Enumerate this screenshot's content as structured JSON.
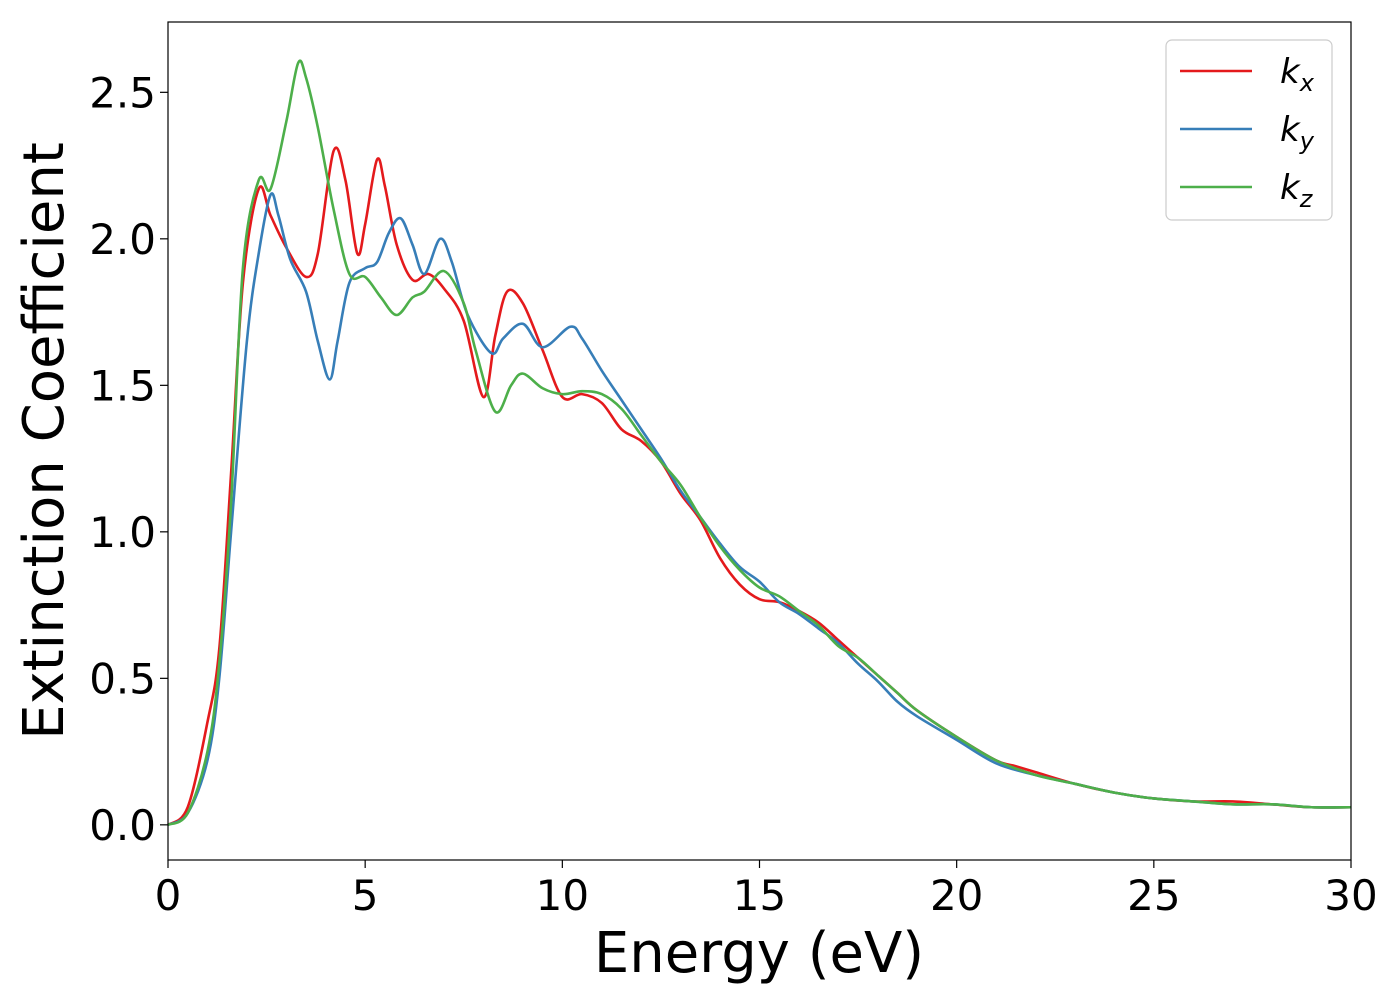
{
  "chart_data": {
    "type": "line",
    "title": "",
    "xlabel": "Energy (eV)",
    "ylabel": "Extinction Coefficient",
    "xlim": [
      0,
      30
    ],
    "ylim": [
      -0.12,
      2.74
    ],
    "xticks": [
      0,
      5,
      10,
      15,
      20,
      25,
      30
    ],
    "xtick_labels": [
      "0",
      "5",
      "10",
      "15",
      "20",
      "25",
      "30"
    ],
    "yticks": [
      0.0,
      0.5,
      1.0,
      1.5,
      2.0,
      2.5
    ],
    "ytick_labels": [
      "0.0",
      "0.5",
      "1.0",
      "1.5",
      "2.0",
      "2.5"
    ],
    "grid": false,
    "legend_position": "top-right",
    "series": [
      {
        "name": "k_x",
        "legend_base": "k",
        "legend_sub": "x",
        "color": "#e41a1c",
        "points": [
          [
            0,
            0
          ],
          [
            0.5,
            0.06
          ],
          [
            1.0,
            0.35
          ],
          [
            1.3,
            0.6
          ],
          [
            1.6,
            1.2
          ],
          [
            1.9,
            1.85
          ],
          [
            2.3,
            2.17
          ],
          [
            2.6,
            2.08
          ],
          [
            3.0,
            1.97
          ],
          [
            3.5,
            1.87
          ],
          [
            3.8,
            1.95
          ],
          [
            4.2,
            2.3
          ],
          [
            4.5,
            2.2
          ],
          [
            4.8,
            1.95
          ],
          [
            5.0,
            2.05
          ],
          [
            5.3,
            2.27
          ],
          [
            5.5,
            2.18
          ],
          [
            5.8,
            1.98
          ],
          [
            6.2,
            1.86
          ],
          [
            6.6,
            1.88
          ],
          [
            7.0,
            1.83
          ],
          [
            7.5,
            1.72
          ],
          [
            8.0,
            1.46
          ],
          [
            8.3,
            1.67
          ],
          [
            8.6,
            1.82
          ],
          [
            9.0,
            1.78
          ],
          [
            9.5,
            1.62
          ],
          [
            10.0,
            1.46
          ],
          [
            10.5,
            1.47
          ],
          [
            11.0,
            1.44
          ],
          [
            11.5,
            1.35
          ],
          [
            12.0,
            1.31
          ],
          [
            12.5,
            1.24
          ],
          [
            13.0,
            1.13
          ],
          [
            13.5,
            1.04
          ],
          [
            14.0,
            0.91
          ],
          [
            14.5,
            0.82
          ],
          [
            15.0,
            0.77
          ],
          [
            15.5,
            0.76
          ],
          [
            16.0,
            0.73
          ],
          [
            16.5,
            0.69
          ],
          [
            17.0,
            0.63
          ],
          [
            17.5,
            0.57
          ],
          [
            18.0,
            0.51
          ],
          [
            18.5,
            0.45
          ],
          [
            19.0,
            0.39
          ],
          [
            20.0,
            0.3
          ],
          [
            21.0,
            0.22
          ],
          [
            21.5,
            0.2
          ],
          [
            22.0,
            0.18
          ],
          [
            23.0,
            0.14
          ],
          [
            24.0,
            0.11
          ],
          [
            25.0,
            0.09
          ],
          [
            26.0,
            0.08
          ],
          [
            27.0,
            0.08
          ],
          [
            28.0,
            0.07
          ],
          [
            29.0,
            0.06
          ],
          [
            30.0,
            0.06
          ]
        ]
      },
      {
        "name": "k_y",
        "legend_base": "k",
        "legend_sub": "y",
        "color": "#377eb8",
        "points": [
          [
            0,
            0
          ],
          [
            0.5,
            0.04
          ],
          [
            1.0,
            0.22
          ],
          [
            1.3,
            0.5
          ],
          [
            1.6,
            1.0
          ],
          [
            2.0,
            1.65
          ],
          [
            2.3,
            1.95
          ],
          [
            2.6,
            2.15
          ],
          [
            2.8,
            2.08
          ],
          [
            3.1,
            1.93
          ],
          [
            3.5,
            1.82
          ],
          [
            3.8,
            1.65
          ],
          [
            4.1,
            1.52
          ],
          [
            4.3,
            1.65
          ],
          [
            4.6,
            1.85
          ],
          [
            5.0,
            1.9
          ],
          [
            5.3,
            1.92
          ],
          [
            5.6,
            2.02
          ],
          [
            5.9,
            2.07
          ],
          [
            6.2,
            1.98
          ],
          [
            6.5,
            1.88
          ],
          [
            6.9,
            2.0
          ],
          [
            7.2,
            1.92
          ],
          [
            7.6,
            1.74
          ],
          [
            8.2,
            1.61
          ],
          [
            8.5,
            1.66
          ],
          [
            9.0,
            1.71
          ],
          [
            9.5,
            1.63
          ],
          [
            10.2,
            1.7
          ],
          [
            10.5,
            1.66
          ],
          [
            11.0,
            1.55
          ],
          [
            11.5,
            1.45
          ],
          [
            12.0,
            1.35
          ],
          [
            12.5,
            1.25
          ],
          [
            13.0,
            1.14
          ],
          [
            13.5,
            1.05
          ],
          [
            14.0,
            0.96
          ],
          [
            14.5,
            0.88
          ],
          [
            15.0,
            0.83
          ],
          [
            15.5,
            0.76
          ],
          [
            16.0,
            0.72
          ],
          [
            16.5,
            0.67
          ],
          [
            17.0,
            0.62
          ],
          [
            17.5,
            0.55
          ],
          [
            18.0,
            0.49
          ],
          [
            18.5,
            0.42
          ],
          [
            19.0,
            0.37
          ],
          [
            20.0,
            0.29
          ],
          [
            21.0,
            0.21
          ],
          [
            22.0,
            0.17
          ],
          [
            23.0,
            0.14
          ],
          [
            24.0,
            0.11
          ],
          [
            25.0,
            0.09
          ],
          [
            26.0,
            0.08
          ],
          [
            27.0,
            0.07
          ],
          [
            28.0,
            0.07
          ],
          [
            29.0,
            0.06
          ],
          [
            30.0,
            0.06
          ]
        ]
      },
      {
        "name": "k_z",
        "legend_base": "k",
        "legend_sub": "z",
        "color": "#4daf4a",
        "points": [
          [
            0,
            0
          ],
          [
            0.5,
            0.04
          ],
          [
            1.0,
            0.25
          ],
          [
            1.3,
            0.55
          ],
          [
            1.6,
            1.1
          ],
          [
            1.9,
            1.9
          ],
          [
            2.3,
            2.2
          ],
          [
            2.6,
            2.17
          ],
          [
            3.0,
            2.4
          ],
          [
            3.3,
            2.6
          ],
          [
            3.5,
            2.55
          ],
          [
            3.8,
            2.38
          ],
          [
            4.2,
            2.1
          ],
          [
            4.6,
            1.88
          ],
          [
            5.0,
            1.87
          ],
          [
            5.4,
            1.8
          ],
          [
            5.8,
            1.74
          ],
          [
            6.2,
            1.8
          ],
          [
            6.5,
            1.82
          ],
          [
            7.0,
            1.89
          ],
          [
            7.5,
            1.78
          ],
          [
            7.8,
            1.62
          ],
          [
            8.3,
            1.41
          ],
          [
            8.7,
            1.5
          ],
          [
            9.0,
            1.54
          ],
          [
            9.5,
            1.49
          ],
          [
            10.0,
            1.47
          ],
          [
            10.5,
            1.48
          ],
          [
            11.0,
            1.47
          ],
          [
            11.5,
            1.42
          ],
          [
            12.0,
            1.33
          ],
          [
            12.5,
            1.24
          ],
          [
            13.0,
            1.16
          ],
          [
            13.5,
            1.05
          ],
          [
            14.0,
            0.95
          ],
          [
            14.5,
            0.87
          ],
          [
            15.0,
            0.81
          ],
          [
            15.5,
            0.78
          ],
          [
            16.0,
            0.73
          ],
          [
            16.5,
            0.68
          ],
          [
            17.0,
            0.61
          ],
          [
            17.5,
            0.57
          ],
          [
            18.0,
            0.51
          ],
          [
            18.5,
            0.45
          ],
          [
            19.0,
            0.39
          ],
          [
            20.0,
            0.3
          ],
          [
            21.0,
            0.22
          ],
          [
            22.0,
            0.17
          ],
          [
            23.0,
            0.14
          ],
          [
            24.0,
            0.11
          ],
          [
            25.0,
            0.09
          ],
          [
            26.0,
            0.08
          ],
          [
            27.0,
            0.07
          ],
          [
            28.0,
            0.07
          ],
          [
            29.0,
            0.06
          ],
          [
            30.0,
            0.06
          ]
        ]
      }
    ]
  }
}
